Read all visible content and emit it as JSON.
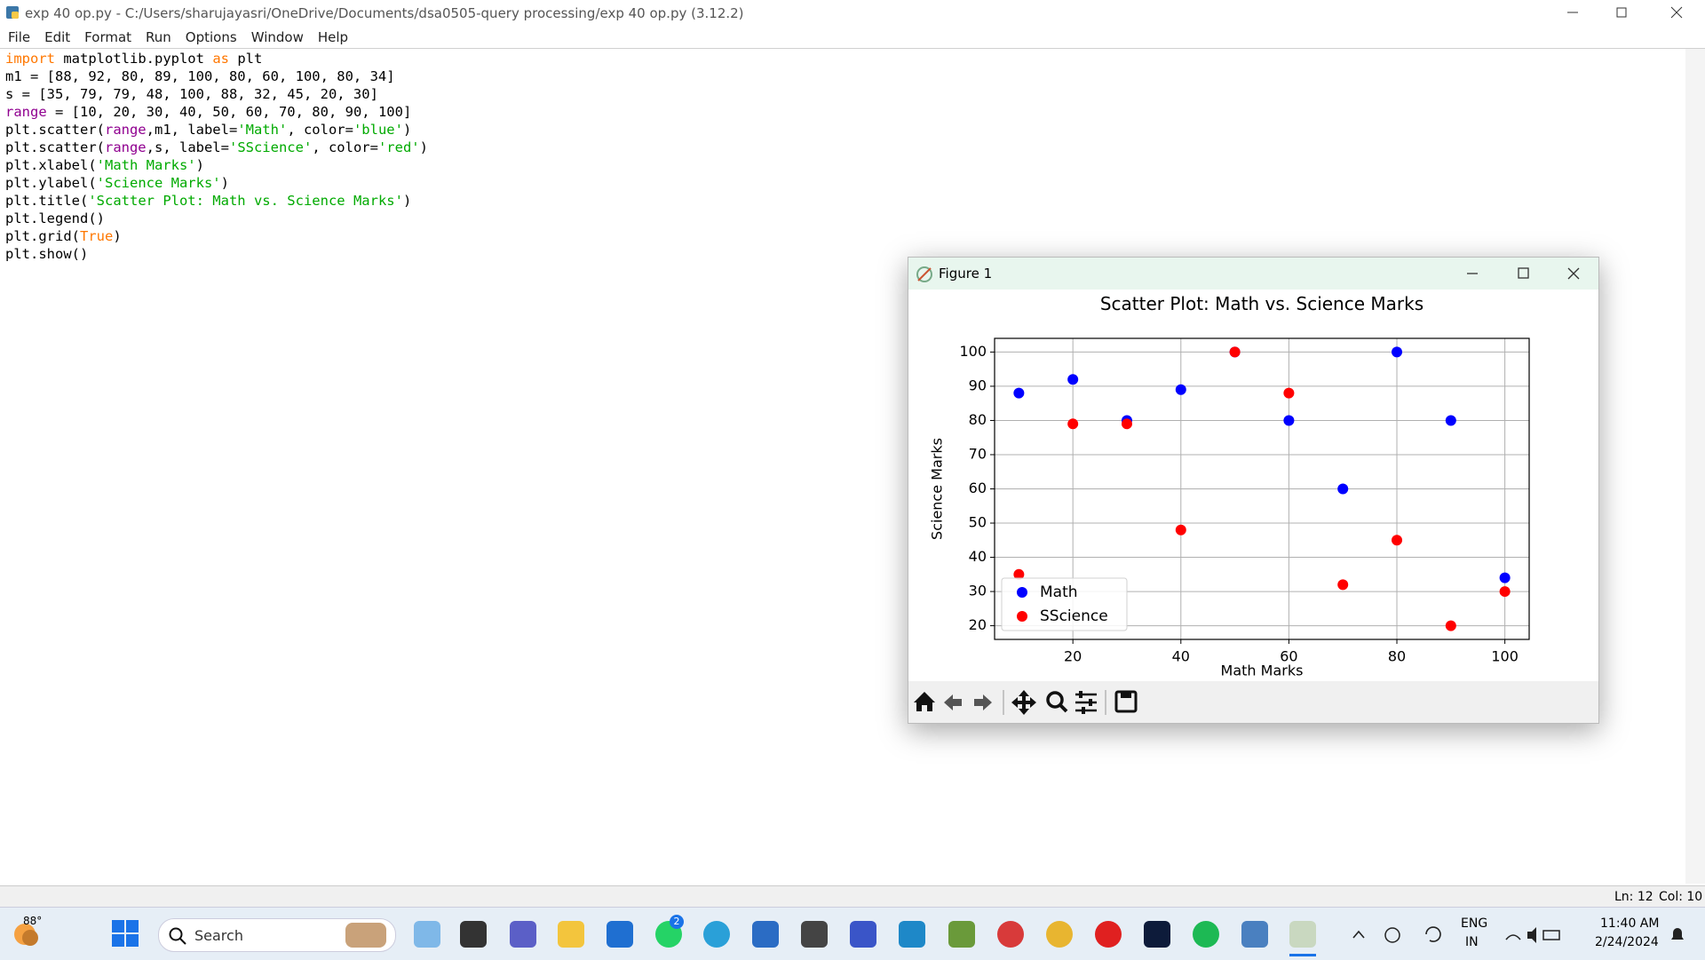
{
  "window": {
    "title": "exp 40 op.py - C:/Users/sharujayasri/OneDrive/Documents/dsa0505-query processing/exp 40 op.py (3.12.2)",
    "menu": [
      "File",
      "Edit",
      "Format",
      "Run",
      "Options",
      "Window",
      "Help"
    ]
  },
  "code": {
    "lines": [
      [
        {
          "text": "import",
          "color": "#ff7700"
        },
        {
          "text": " matplotlib.pyplot ",
          "color": "#000000"
        },
        {
          "text": "as",
          "color": "#ff7700"
        },
        {
          "text": " plt",
          "color": "#000000"
        }
      ],
      [
        {
          "text": "m1 = [88, 92, 80, 89, 100, 80, 60, 100, 80, 34]",
          "color": "#000000"
        }
      ],
      [
        {
          "text": "s = [35, 79, 79, 48, 100, 88, 32, 45, 20, 30]",
          "color": "#000000"
        }
      ],
      [
        {
          "text": "range",
          "color": "#900090"
        },
        {
          "text": " = [10, 20, 30, 40, 50, 60, 70, 80, 90, 100]",
          "color": "#000000"
        }
      ],
      [
        {
          "text": "plt.scatter(",
          "color": "#000000"
        },
        {
          "text": "range",
          "color": "#900090"
        },
        {
          "text": ",m1, label=",
          "color": "#000000"
        },
        {
          "text": "'Math'",
          "color": "#00aa00"
        },
        {
          "text": ", color=",
          "color": "#000000"
        },
        {
          "text": "'blue'",
          "color": "#00aa00"
        },
        {
          "text": ")",
          "color": "#000000"
        }
      ],
      [
        {
          "text": "plt.scatter(",
          "color": "#000000"
        },
        {
          "text": "range",
          "color": "#900090"
        },
        {
          "text": ",s, label=",
          "color": "#000000"
        },
        {
          "text": "'SScience'",
          "color": "#00aa00"
        },
        {
          "text": ", color=",
          "color": "#000000"
        },
        {
          "text": "'red'",
          "color": "#00aa00"
        },
        {
          "text": ")",
          "color": "#000000"
        }
      ],
      [
        {
          "text": "plt.xlabel(",
          "color": "#000000"
        },
        {
          "text": "'Math Marks'",
          "color": "#00aa00"
        },
        {
          "text": ")",
          "color": "#000000"
        }
      ],
      [
        {
          "text": "plt.ylabel(",
          "color": "#000000"
        },
        {
          "text": "'Science Marks'",
          "color": "#00aa00"
        },
        {
          "text": ")",
          "color": "#000000"
        }
      ],
      [
        {
          "text": "plt.title(",
          "color": "#000000"
        },
        {
          "text": "'Scatter Plot: Math vs. Science Marks'",
          "color": "#00aa00"
        },
        {
          "text": ")",
          "color": "#000000"
        }
      ],
      [
        {
          "text": "plt.legend()",
          "color": "#000000"
        }
      ],
      [
        {
          "text": "plt.grid(",
          "color": "#000000"
        },
        {
          "text": "True",
          "color": "#ff7700"
        },
        {
          "text": ")",
          "color": "#000000"
        }
      ],
      [
        {
          "text": "plt.show()",
          "color": "#000000"
        }
      ]
    ]
  },
  "status": {
    "line": "Ln: 12",
    "col": "Col: 10"
  },
  "figure": {
    "title": "Figure 1",
    "chart_data": {
      "type": "scatter",
      "title": "Scatter Plot: Math vs. Science Marks",
      "x_label": "Math Marks",
      "y_label": "Science Marks",
      "x": [
        10,
        20,
        30,
        40,
        50,
        60,
        70,
        80,
        90,
        100
      ],
      "series": [
        {
          "name": "Math",
          "color": "#0000ff",
          "values": [
            88,
            92,
            80,
            89,
            100,
            80,
            60,
            100,
            80,
            34
          ]
        },
        {
          "name": "SScience",
          "color": "#ff0000",
          "values": [
            35,
            79,
            79,
            48,
            100,
            88,
            32,
            45,
            20,
            30
          ]
        }
      ],
      "xlim": [
        5.5,
        104.5
      ],
      "xticks": [
        20,
        40,
        60,
        80,
        100
      ],
      "ylim": [
        16,
        104
      ],
      "yticks": [
        20,
        30,
        40,
        50,
        60,
        70,
        80,
        90,
        100
      ],
      "grid": true,
      "legend_position": "lower left"
    }
  },
  "taskbar": {
    "weather": "88°",
    "search": "Search",
    "badge": "2",
    "lang": "ENG",
    "region": "IN",
    "time": "11:40 AM",
    "date": "2/24/2024"
  }
}
